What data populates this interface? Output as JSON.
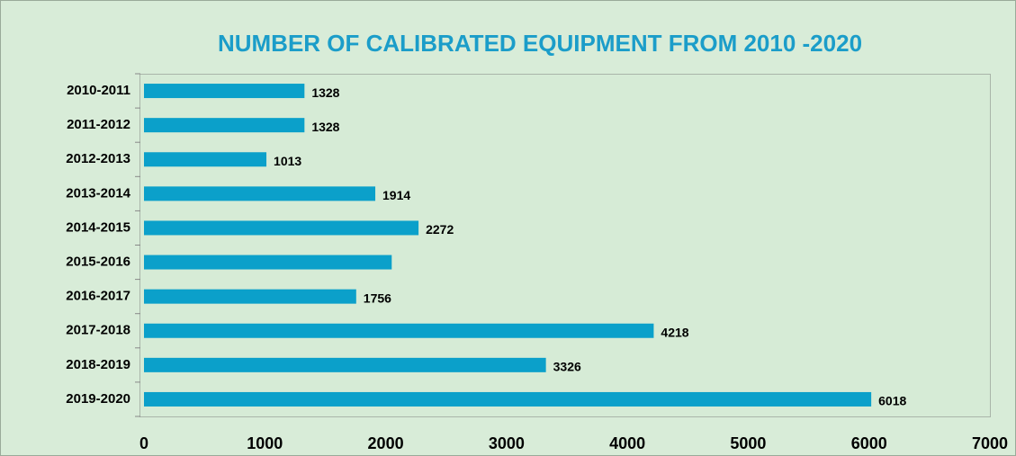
{
  "chart_data": {
    "type": "barh",
    "title": "NUMBER OF CALIBRATED EQUIPMENT FROM 2010 -2020",
    "categories": [
      "2010-2011",
      "2011-2012",
      "2012-2013",
      "2013-2014",
      "2014-2015",
      "2015-2016",
      "2016-2017",
      "2017-2018",
      "2018-2019",
      "2019-2020"
    ],
    "values": [
      1328,
      1328,
      1013,
      1914,
      2272,
      2050,
      1756,
      4218,
      3326,
      6018
    ],
    "value_labels": [
      "1328",
      "1328",
      "1013",
      "1914",
      "2272",
      null,
      "1756",
      "4218",
      "3326",
      "6018"
    ],
    "color": "#0ba0ca",
    "xlim": [
      0,
      7000
    ],
    "xticks": [
      0,
      1000,
      2000,
      3000,
      4000,
      5000,
      6000,
      7000
    ],
    "grid": false
  }
}
